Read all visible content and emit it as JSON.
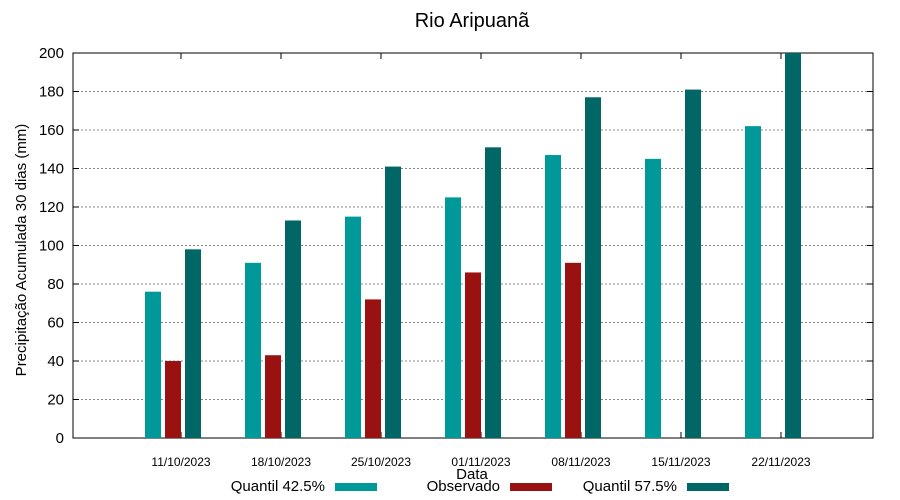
{
  "chart_data": {
    "type": "bar",
    "title": "Rio Aripuanã",
    "xlabel": "Data",
    "ylabel": "Precipitação Acumulada 30 dias (mm)",
    "ylim": [
      0,
      200
    ],
    "yticks": [
      0,
      20,
      40,
      60,
      80,
      100,
      120,
      140,
      160,
      180,
      200
    ],
    "grid": true,
    "legend_position": "bottom",
    "categories": [
      "11/10/2023",
      "18/10/2023",
      "25/10/2023",
      "01/11/2023",
      "08/11/2023",
      "15/11/2023",
      "22/11/2023"
    ],
    "series": [
      {
        "name": "Quantil 42.5%",
        "color": "#009999",
        "values": [
          76,
          91,
          115,
          125,
          147,
          145,
          162
        ]
      },
      {
        "name": "Observado",
        "color": "#991111",
        "values": [
          40,
          43,
          72,
          86,
          91,
          null,
          null
        ]
      },
      {
        "name": "Quantil 57.5%",
        "color": "#006666",
        "values": [
          98,
          113,
          141,
          151,
          177,
          181,
          200
        ]
      }
    ]
  }
}
